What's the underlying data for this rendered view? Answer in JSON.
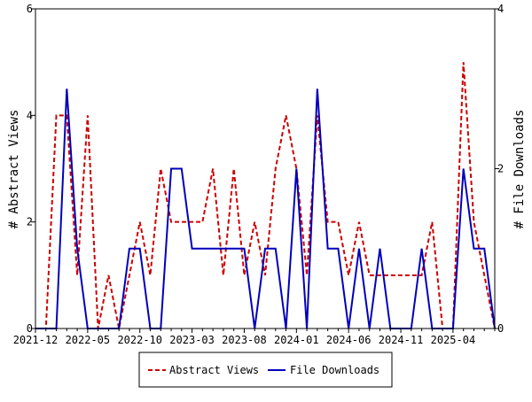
{
  "chart_data": {
    "type": "line",
    "x": [
      "2021-12",
      "2022-01",
      "2022-02",
      "2022-03",
      "2022-04",
      "2022-05",
      "2022-06",
      "2022-07",
      "2022-08",
      "2022-09",
      "2022-10",
      "2022-11",
      "2022-12",
      "2023-01",
      "2023-02",
      "2023-03",
      "2023-04",
      "2023-05",
      "2023-06",
      "2023-07",
      "2023-08",
      "2023-09",
      "2023-10",
      "2023-11",
      "2023-12",
      "2024-01",
      "2024-02",
      "2024-03",
      "2024-04",
      "2024-05",
      "2024-06",
      "2024-07",
      "2024-08",
      "2024-09",
      "2024-10",
      "2024-11",
      "2024-12",
      "2025-01",
      "2025-02",
      "2025-03",
      "2025-04",
      "2025-05",
      "2025-06",
      "2025-07",
      "2025-08"
    ],
    "x_tick_labels": [
      "2021-12",
      "2022-05",
      "2022-10",
      "2023-03",
      "2023-08",
      "2024-01",
      "2024-06",
      "2024-11",
      "2025-04"
    ],
    "series": [
      {
        "name": "Abstract Views",
        "axis": "left",
        "color": "#cc0000",
        "style": "dashed",
        "values": [
          0,
          0,
          4,
          4,
          1,
          4,
          0,
          1,
          0,
          1,
          2,
          1,
          3,
          2,
          2,
          2,
          2,
          3,
          1,
          3,
          1,
          2,
          1,
          3,
          4,
          3,
          1,
          4,
          2,
          2,
          1,
          2,
          1,
          1,
          1,
          1,
          1,
          1,
          2,
          0,
          0,
          5,
          2,
          1,
          0
        ]
      },
      {
        "name": "File Downloads",
        "axis": "right",
        "color": "#0000bb",
        "style": "solid",
        "values": [
          0,
          0,
          0,
          3,
          1,
          0,
          0,
          0,
          0,
          1,
          1,
          0,
          0,
          2,
          2,
          1,
          1,
          1,
          1,
          1,
          1,
          0,
          1,
          1,
          0,
          2,
          0,
          3,
          1,
          1,
          0,
          1,
          0,
          1,
          0,
          0,
          0,
          1,
          0,
          0,
          0,
          2,
          1,
          1,
          0
        ]
      }
    ],
    "ylabel": "# Abstract Views",
    "y2label": "# File Downloads",
    "ylim": [
      0,
      6
    ],
    "y2lim": [
      0,
      4
    ],
    "y_ticks": [
      "0",
      "2",
      "4",
      "6"
    ],
    "y2_ticks": [
      "0",
      "2",
      "4"
    ],
    "legend_position": "bottom-center",
    "grid": false
  }
}
